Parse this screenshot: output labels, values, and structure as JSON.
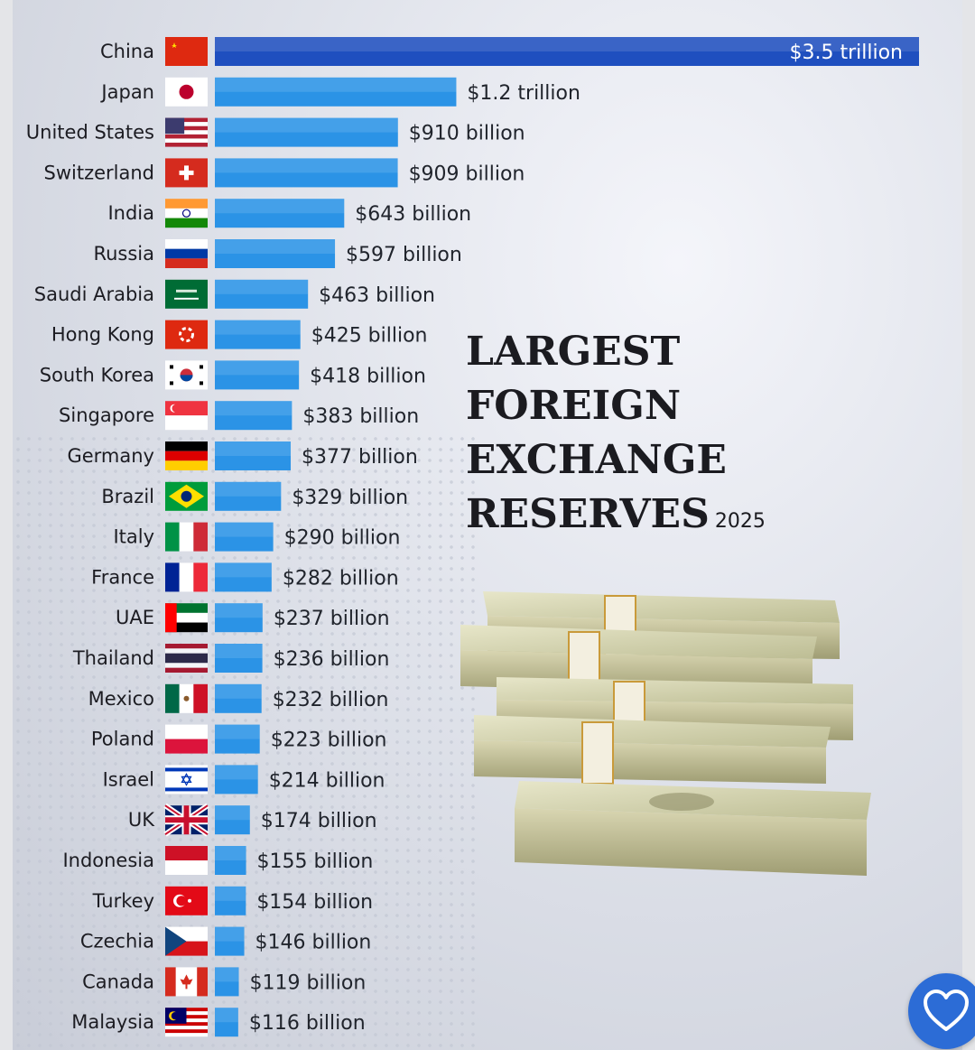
{
  "chart_data": {
    "type": "bar",
    "orientation": "horizontal",
    "title": "LARGEST FOREIGN EXCHANGE RESERVES",
    "subtitle": "2025",
    "unit": "USD",
    "categories": [
      "China",
      "Japan",
      "United States",
      "Switzerland",
      "India",
      "Russia",
      "Saudi Arabia",
      "Hong Kong",
      "South Korea",
      "Singapore",
      "Germany",
      "Brazil",
      "Italy",
      "France",
      "UAE",
      "Thailand",
      "Mexico",
      "Poland",
      "Israel",
      "UK",
      "Indonesia",
      "Turkey",
      "Czechia",
      "Canada",
      "Malaysia"
    ],
    "values_billion": [
      3500,
      1200,
      910,
      909,
      643,
      597,
      463,
      425,
      418,
      383,
      377,
      329,
      290,
      282,
      237,
      236,
      232,
      223,
      214,
      174,
      155,
      154,
      146,
      119,
      116
    ],
    "value_labels": [
      "$3.5 trillion",
      "$1.2 trillion",
      "$910 billion",
      "$909 billion",
      "$643 billion",
      "$597 billion",
      "$463 billion",
      "$425 billion",
      "$418 billion",
      "$383 billion",
      "$377 billion",
      "$329 billion",
      "$290 billion",
      "$282 billion",
      "$237 billion",
      "$236 billion",
      "$232 billion",
      "$223 billion",
      "$214 billion",
      "$174 billion",
      "$155 billion",
      "$154 billion",
      "$146 billion",
      "$119 billion",
      "$116 billion"
    ],
    "flags": [
      "china-flag",
      "japan-flag",
      "united-states-flag",
      "switzerland-flag",
      "india-flag",
      "russia-flag",
      "saudi-arabia-flag",
      "hong-kong-flag",
      "south-korea-flag",
      "singapore-flag",
      "germany-flag",
      "brazil-flag",
      "italy-flag",
      "france-flag",
      "uae-flag",
      "thailand-flag",
      "mexico-flag",
      "poland-flag",
      "israel-flag",
      "uk-flag",
      "indonesia-flag",
      "turkey-flag",
      "czechia-flag",
      "canada-flag",
      "malaysia-flag"
    ],
    "bar_color": "#2b93e6",
    "top_bar_color": "#1f4fbf",
    "grid": false,
    "legend": "none"
  },
  "title": {
    "line1": "LARGEST",
    "line2": "FOREIGN EXCHANGE",
    "line3": "RESERVES",
    "year": "2025"
  },
  "decor": {
    "image": "money-stacks-illustration",
    "favorite_button_icon": "heart-icon",
    "accent": "#2c6cd6"
  }
}
